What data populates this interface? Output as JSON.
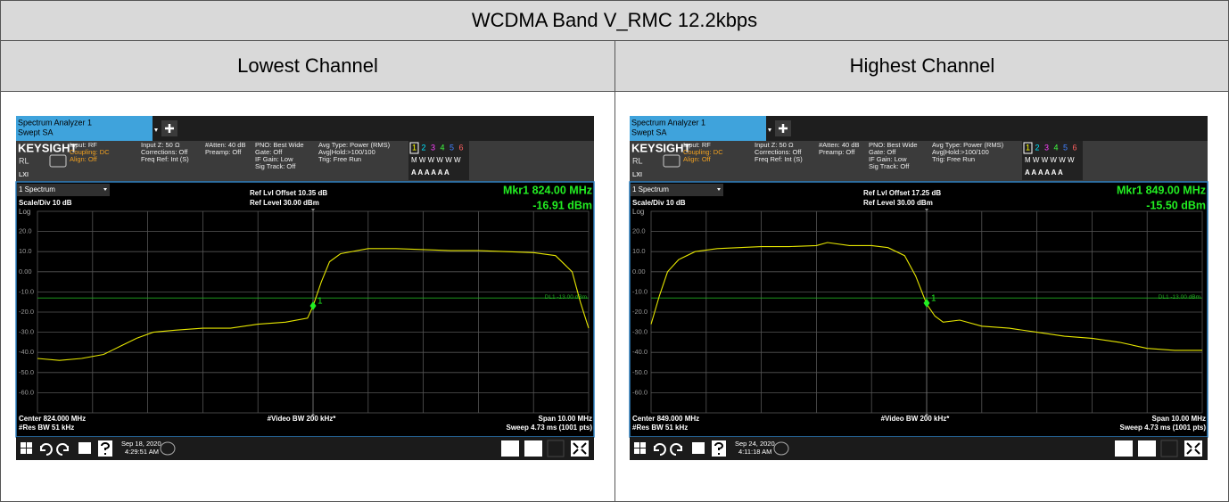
{
  "header": {
    "title": "WCDMA Band V_RMC 12.2kbps"
  },
  "columns": [
    {
      "heading": "Lowest Channel",
      "analyzer": {
        "tab_title": "Spectrum Analyzer 1",
        "tab_subtitle": "Swept SA",
        "brand": "KEYSIGHT",
        "rl": "RL",
        "lxi": "LXI",
        "info": [
          [
            "Input: RF",
            "Coupling: DC",
            "Align: Off"
          ],
          [
            "Input Z: 50 Ω",
            "Corrections: Off",
            "Freq Ref: Int (S)"
          ],
          [
            "#Atten: 40 dB",
            "Preamp: Off"
          ],
          [
            "PNO: Best Wide",
            "Gate: Off",
            "IF Gain: Low",
            "Sig Track: Off"
          ],
          [
            "Avg Type: Power (RMS)",
            "Avg|Hold:>100/100",
            "Trig: Free Run"
          ]
        ],
        "trace_numbers": [
          "1",
          "2",
          "3",
          "4",
          "5",
          "6"
        ],
        "trace_modes": "M W W W W W",
        "trace_detectors": "A A A A A A",
        "window": "1 Spectrum",
        "scale": "Scale/Div 10 dB",
        "scale_type": "Log",
        "ref_offset": "Ref Lvl Offset 10.35 dB",
        "ref_level": "Ref Level 30.00 dBm",
        "marker_freq": "Mkr1  824.00 MHz",
        "marker_level": "-16.91 dBm",
        "center": "Center 824.000 MHz",
        "res_bw": "#Res BW 51 kHz",
        "video_bw": "#Video BW 200 kHz*",
        "span": "Span 10.00 MHz",
        "sweep": "Sweep 4.73 ms (1001 pts)",
        "date": "Sep 18, 2020",
        "time": "4:29:51 AM",
        "trace": {
          "xlim": [
            819,
            829
          ],
          "ylim": [
            -70,
            30
          ],
          "color": "#e6e600",
          "yticks": [
            {
              "value": 20,
              "label": "20.0"
            },
            {
              "value": 10,
              "label": "10.0"
            },
            {
              "value": 0,
              "label": "0.00"
            },
            {
              "value": -10,
              "label": "-10.0"
            },
            {
              "value": -20,
              "label": "-20.0"
            },
            {
              "value": -30,
              "label": "-30.0"
            },
            {
              "value": -40,
              "label": "-40.0"
            },
            {
              "value": -50,
              "label": "-50.0"
            },
            {
              "value": -60,
              "label": "-60.0"
            }
          ],
          "x": [
            819,
            819.4,
            819.8,
            820.2,
            820.5,
            820.8,
            821.1,
            821.5,
            822,
            822.5,
            823,
            823.5,
            823.9,
            824,
            824.15,
            824.3,
            824.5,
            825,
            825.5,
            826,
            826.5,
            827,
            827.5,
            828,
            828.4,
            828.7,
            828.85,
            829
          ],
          "y": [
            -43,
            -44,
            -43,
            -41,
            -37,
            -33,
            -30,
            -29,
            -28,
            -28,
            -26,
            -25,
            -23,
            -17,
            -5,
            5,
            9,
            11.5,
            11.5,
            11,
            10.5,
            10.5,
            10,
            9.5,
            8,
            0,
            -15,
            -28
          ],
          "marker": {
            "x": 824,
            "y": -16.91,
            "label": "1"
          },
          "display_line": {
            "value": -13,
            "label": "DL1 -13.00 dBm"
          }
        }
      }
    },
    {
      "heading": "Highest Channel",
      "analyzer": {
        "tab_title": "Spectrum Analyzer 1",
        "tab_subtitle": "Swept SA",
        "brand": "KEYSIGHT",
        "rl": "RL",
        "lxi": "LXI",
        "info": [
          [
            "Input: RF",
            "Coupling: DC",
            "Align: Off"
          ],
          [
            "Input Z: 50 Ω",
            "Corrections: Off",
            "Freq Ref: Int (S)"
          ],
          [
            "#Atten: 40 dB",
            "Preamp: Off"
          ],
          [
            "PNO: Best Wide",
            "Gate: Off",
            "IF Gain: Low",
            "Sig Track: Off"
          ],
          [
            "Avg Type: Power (RMS)",
            "Avg|Hold:>100/100",
            "Trig: Free Run"
          ]
        ],
        "trace_numbers": [
          "1",
          "2",
          "3",
          "4",
          "5",
          "6"
        ],
        "trace_modes": "M W W W W W",
        "trace_detectors": "A A A A A A",
        "window": "1 Spectrum",
        "scale": "Scale/Div 10 dB",
        "scale_type": "Log",
        "ref_offset": "Ref Lvl Offset 17.25 dB",
        "ref_level": "Ref Level 30.00 dBm",
        "marker_freq": "Mkr1  849.00 MHz",
        "marker_level": "-15.50 dBm",
        "center": "Center 849.000 MHz",
        "res_bw": "#Res BW 51 kHz",
        "video_bw": "#Video BW 200 kHz*",
        "span": "Span 10.00 MHz",
        "sweep": "Sweep 4.73 ms (1001 pts)",
        "date": "Sep 24, 2020",
        "time": "4:11:18 AM",
        "trace": {
          "xlim": [
            844,
            854
          ],
          "ylim": [
            -70,
            30
          ],
          "color": "#e6e600",
          "yticks": [
            {
              "value": 20,
              "label": "20.0"
            },
            {
              "value": 10,
              "label": "10.0"
            },
            {
              "value": 0,
              "label": "0.00"
            },
            {
              "value": -10,
              "label": "-10.0"
            },
            {
              "value": -20,
              "label": "-20.0"
            },
            {
              "value": -30,
              "label": "-30.0"
            },
            {
              "value": -40,
              "label": "-40.0"
            },
            {
              "value": -50,
              "label": "-50.0"
            },
            {
              "value": -60,
              "label": "-60.0"
            }
          ],
          "x": [
            844,
            844.15,
            844.3,
            844.5,
            844.8,
            845.2,
            845.6,
            846,
            846.5,
            847,
            847.2,
            847.6,
            848,
            848.3,
            848.6,
            848.8,
            849,
            849.15,
            849.3,
            849.6,
            850,
            850.5,
            851,
            851.5,
            852,
            852.5,
            853,
            853.5,
            854
          ],
          "y": [
            -26,
            -12,
            0,
            6,
            10,
            11.5,
            12,
            12.5,
            12.5,
            13,
            14.5,
            13,
            13,
            12,
            8,
            -2,
            -16,
            -22,
            -25,
            -24,
            -27,
            -28,
            -30,
            -32,
            -33,
            -35,
            -38,
            -39,
            -39
          ],
          "marker": {
            "x": 849,
            "y": -15.5,
            "label": "1"
          },
          "display_line": {
            "value": -13,
            "label": "DL1 -13.00 dBm"
          }
        }
      }
    }
  ]
}
